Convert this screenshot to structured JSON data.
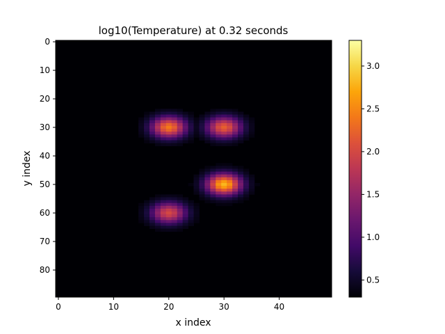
{
  "chart_data": {
    "type": "heatmap",
    "title": "log10(Temperature) at 0.32 seconds",
    "xlabel": "x index",
    "ylabel": "y index",
    "grid": false,
    "colormap": "inferno",
    "colorbar_position": "right",
    "x_range": [
      -0.5,
      49.5
    ],
    "y_range": [
      -0.5,
      89.5
    ],
    "y_inverted": true,
    "x_ticks": [
      0,
      10,
      20,
      30,
      40
    ],
    "y_ticks": [
      0,
      10,
      20,
      30,
      40,
      50,
      60,
      70,
      80
    ],
    "colorbar_range": [
      0.3,
      3.3
    ],
    "colorbar_ticks": [
      0.5,
      1.0,
      1.5,
      2.0,
      2.5,
      3.0
    ],
    "colorbar_tick_labels": [
      "0.5",
      "1.0",
      "1.5",
      "2.0",
      "2.5",
      "3.0"
    ],
    "background_value": 0.3,
    "hot_spots": [
      {
        "x": 20,
        "y": 30,
        "peak": 2.4
      },
      {
        "x": 30,
        "y": 30,
        "peak": 2.2
      },
      {
        "x": 30,
        "y": 50,
        "peak": 2.8
      },
      {
        "x": 20,
        "y": 60,
        "peak": 2.0
      }
    ]
  }
}
